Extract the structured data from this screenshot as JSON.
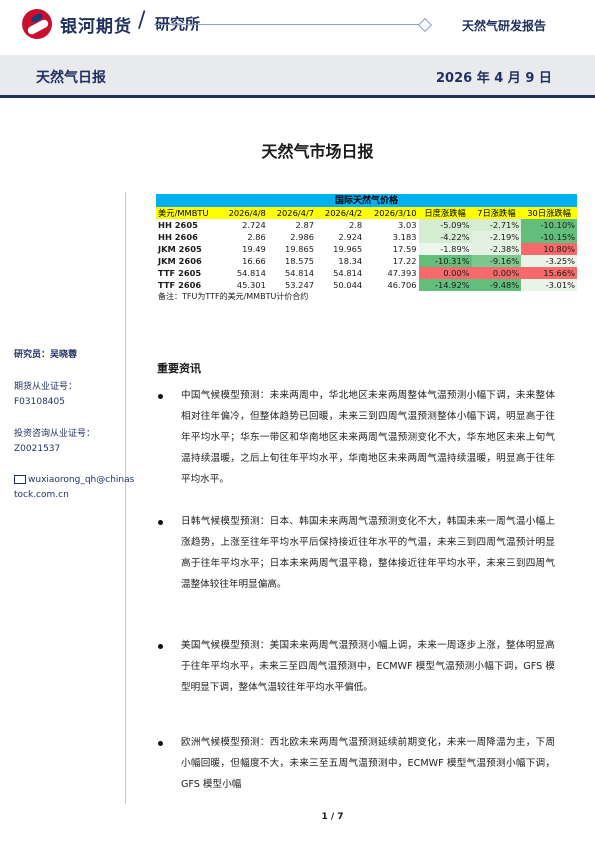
{
  "header": {
    "brand": "银河期货",
    "slash": "/",
    "dept": "研究所",
    "report_type": "天然气研发报告"
  },
  "band": {
    "title": "天然气日报",
    "date": "2026 年 4 月 9 日"
  },
  "doc_title": "天然气市场日报",
  "sidebar": {
    "analyst_label": "研究员：吴晓蓉",
    "cert_label": "期货从业证号：",
    "cert_value": "F03108405",
    "invest_label": "投资咨询从业证号：",
    "invest_value": "Z0021537",
    "email_line1": "wuxiaorong_qh@chinas",
    "email_line2": "tock.com.cn"
  },
  "table": {
    "caption": "国际天然气价格",
    "headers": [
      "美元/MMBTU",
      "2026/4/8",
      "2026/4/7",
      "2026/4/2",
      "2026/3/10",
      "日度涨跌幅",
      "7日涨跌幅",
      "30日涨跌幅"
    ],
    "rows": [
      {
        "name": "HH 2605",
        "v1": "2.724",
        "v2": "2.87",
        "v3": "2.8",
        "v4": "3.03",
        "d1": "-5.09%",
        "d7": "-2.71%",
        "d30": "-10.10%"
      },
      {
        "name": "HH 2606",
        "v1": "2.86",
        "v2": "2.986",
        "v3": "2.924",
        "v4": "3.183",
        "d1": "-4.22%",
        "d7": "-2.19%",
        "d30": "-10.15%"
      },
      {
        "name": "JKM 2605",
        "v1": "19.49",
        "v2": "19.865",
        "v3": "19.965",
        "v4": "17.59",
        "d1": "-1.89%",
        "d7": "-2.38%",
        "d30": "10.80%"
      },
      {
        "name": "JKM 2606",
        "v1": "16.66",
        "v2": "18.575",
        "v3": "18.34",
        "v4": "17.22",
        "d1": "-10.31%",
        "d7": "-9.16%",
        "d30": "-3.25%"
      },
      {
        "name": "TTF 2605",
        "v1": "54.814",
        "v2": "54.814",
        "v3": "54.814",
        "v4": "47.393",
        "d1": "0.00%",
        "d7": "0.00%",
        "d30": "15.66%"
      },
      {
        "name": "TTF 2606",
        "v1": "45.301",
        "v2": "53.247",
        "v3": "50.044",
        "v4": "46.706",
        "d1": "-14.92%",
        "d7": "-9.48%",
        "d30": "-3.01%"
      }
    ],
    "cell_colors": [
      [
        "#d6ecd3",
        "#d6ecd3",
        "#63be7b"
      ],
      [
        "#d6ecd3",
        "#e3f2e1",
        "#63be7b"
      ],
      [
        "#eef7ed",
        "#e3f2e1",
        "#f8696b"
      ],
      [
        "#63be7b",
        "#7cc98f",
        "#e8f4e6"
      ],
      [
        "#f8696b",
        "#f8696b",
        "#f8696b"
      ],
      [
        "#63be7b",
        "#63be7b",
        "#e8f4e6"
      ]
    ],
    "note": "备注：TFU为TTF的美元/MMBTU计价合约"
  },
  "section_title": "重要资讯",
  "paragraphs": [
    "中国气候模型预测：未来两周中，华北地区未来两周整体气温预测小幅下调，未来整体相对往年偏冷，但整体趋势已回暖，未来三到四周气温预测整体小幅下调，明显高于往年平均水平；华东一带区和华南地区未来两周气温预测变化不大，华东地区未来上旬气温持续温暖，之后上旬往年平均水平，华南地区未来两周气温持续温暖，明显高于往年平均水平。",
    "日韩气候模型预测：日本、韩国未来两周气温预测变化不大，韩国未来一周气温小幅上涨趋势，上涨至往年平均水平后保持接近往年水平的气温，未来三到四周气温预计明显高于往年平均水平；日本未来两周气温平稳，整体接近往年平均水平，未来三到四周气温整体较往年明显偏高。",
    "美国气候模型预测：美国未来两周气温预测小幅上调，未来一周逐步上涨，整体明显高于往年平均水平，未来三至四周气温预测中，ECMWF 模型气温预测小幅下调，GFS 模型明显下调，整体气温较往年平均水平偏低。",
    "欧洲气候模型预测：西北欧未来两周气温预测延续前期变化，未来一周降温为主，下周小幅回暖，但幅度不大，未来三至五周气温预测中，ECMWF 模型气温预测小幅下调，GFS 模型小幅"
  ],
  "page_number": "1 / 7"
}
